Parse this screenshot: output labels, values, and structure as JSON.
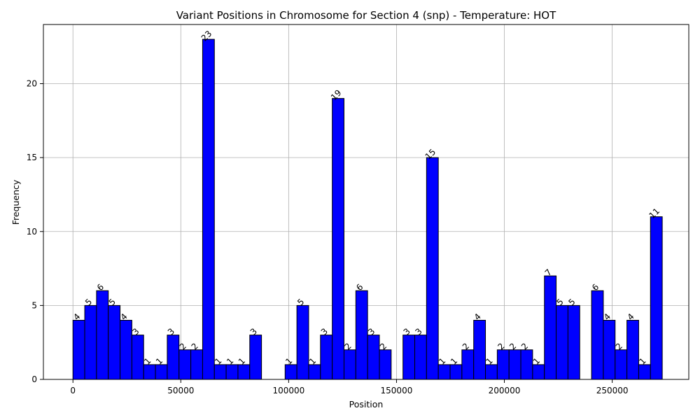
{
  "chart_data": {
    "type": "bar",
    "title": "Variant Positions in Chromosome for Section 4 (snp) - Temperature: HOT",
    "xlabel": "Position",
    "ylabel": "Frequency",
    "xlim": [
      -13700,
      285500
    ],
    "ylim": [
      0,
      24
    ],
    "xticks": [
      0,
      50000,
      100000,
      150000,
      200000,
      250000
    ],
    "yticks": [
      0,
      5,
      10,
      15,
      20
    ],
    "grid": true,
    "bar_color": "#0000ff",
    "bin_start": 0,
    "bin_width": 5464,
    "values": [
      4,
      5,
      6,
      5,
      4,
      3,
      1,
      1,
      3,
      2,
      2,
      23,
      1,
      1,
      1,
      3,
      0,
      0,
      1,
      5,
      1,
      3,
      19,
      2,
      6,
      3,
      2,
      0,
      3,
      3,
      15,
      1,
      1,
      2,
      4,
      1,
      2,
      2,
      2,
      1,
      7,
      5,
      5,
      0,
      6,
      4,
      2,
      4,
      1,
      11
    ],
    "labels": [
      "4",
      "5",
      "6",
      "5",
      "4",
      "3",
      "1",
      "1",
      "3",
      "2",
      "2",
      "23",
      "1",
      "1",
      "1",
      "3",
      "",
      "",
      "1",
      "5",
      "1",
      "3",
      "19",
      "2",
      "6",
      "3",
      "2",
      "",
      "3",
      "3",
      "15",
      "1",
      "1",
      "2",
      "4",
      "1",
      "2",
      "2",
      "2",
      "1",
      "7",
      "5",
      "5",
      "",
      "6",
      "4",
      "2",
      "4",
      "1",
      "11"
    ]
  }
}
